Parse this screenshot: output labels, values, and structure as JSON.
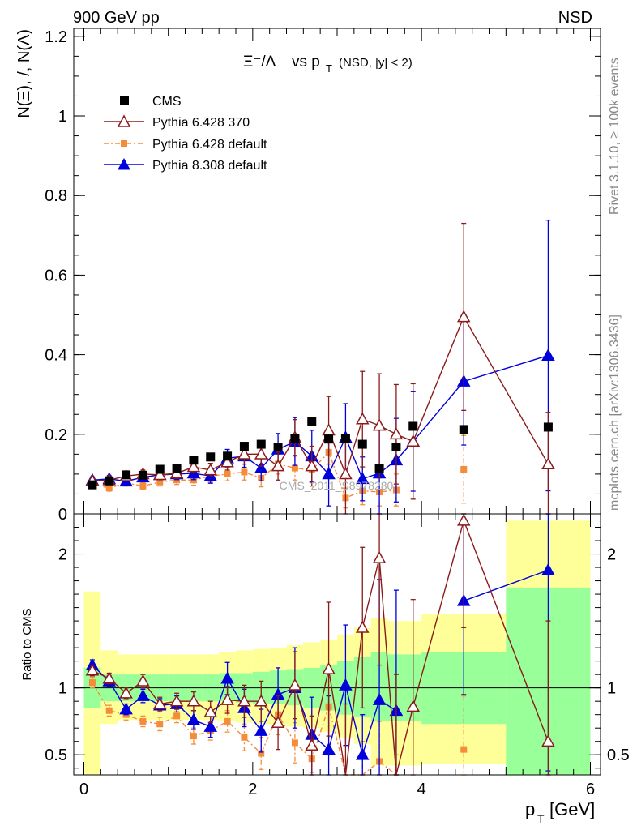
{
  "header": {
    "left": "900 GeV pp",
    "right": "NSD"
  },
  "side_labels": {
    "rivet": "Rivet 3.1.10, ≥ 100k events",
    "mcplots": "mcplots.cern.ch [arXiv:1306.3436]"
  },
  "watermark": "CMS_2011_S8978280",
  "main_plot": {
    "title_ratio": "Ξ⁻/Λ",
    "title_vs": "vs p",
    "title_sub": "T",
    "title_cut": "(NSD, |y| < 2)",
    "ylabel": "N(Ξ), /, N(Λ)",
    "ylim": [
      0,
      1.22
    ],
    "yticks": [
      "0",
      "0.2",
      "0.4",
      "0.6",
      "0.8",
      "1",
      "1.2"
    ]
  },
  "ratio_plot": {
    "ylabel": "Ratio to CMS",
    "ylim": [
      0.35,
      2.3
    ],
    "yticks": [
      "0.5",
      "1",
      "2"
    ]
  },
  "xaxis": {
    "label_main": "p",
    "label_sub": "T",
    "label_unit": "[GeV]",
    "xlim": [
      -0.12,
      6.12
    ],
    "xticks": [
      "0",
      "2",
      "4",
      "6"
    ]
  },
  "legend": {
    "entries": [
      "CMS",
      "Pythia 6.428 370",
      "Pythia 6.428 default",
      "Pythia 8.308 default"
    ]
  },
  "colors": {
    "cms": "#000000",
    "p6_370": "#8b1a1a",
    "p6_default": "#f58c3a",
    "p8": "#0000dd",
    "band_inner": "#99ff99",
    "band_outer": "#ffff99"
  },
  "chart_data": {
    "type": "scatter",
    "x": [
      0.1,
      0.3,
      0.5,
      0.7,
      0.9,
      1.1,
      1.3,
      1.5,
      1.7,
      1.9,
      2.1,
      2.3,
      2.5,
      2.7,
      2.9,
      3.1,
      3.3,
      3.5,
      3.7,
      3.9,
      4.5,
      5.5
    ],
    "bin_edges": [
      0,
      0.2,
      0.4,
      0.6,
      0.8,
      1.0,
      1.2,
      1.4,
      1.6,
      1.8,
      2.0,
      2.2,
      2.4,
      2.6,
      2.8,
      3.0,
      3.2,
      3.4,
      3.6,
      3.8,
      4.0,
      5.0,
      6.0
    ],
    "series": [
      {
        "name": "CMS",
        "y": [
          0.073,
          0.083,
          0.098,
          0.097,
          0.112,
          0.113,
          0.135,
          0.143,
          0.145,
          0.17,
          0.175,
          0.168,
          0.19,
          0.232,
          0.188,
          0.19,
          0.175,
          0.113,
          0.168,
          0.22,
          0.212,
          0.218
        ]
      },
      {
        "name": "Pythia 6.428 370",
        "y": [
          0.083,
          0.085,
          0.095,
          0.1,
          0.098,
          0.102,
          0.118,
          0.11,
          0.13,
          0.15,
          0.15,
          0.12,
          0.192,
          0.12,
          0.21,
          0.1,
          0.238,
          0.222,
          0.2,
          0.182,
          0.495,
          0.125
        ],
        "err": [
          0.008,
          0.008,
          0.009,
          0.01,
          0.011,
          0.013,
          0.015,
          0.017,
          0.02,
          0.025,
          0.03,
          0.035,
          0.045,
          0.05,
          0.085,
          0.1,
          0.12,
          0.13,
          0.125,
          0.145,
          0.235,
          0.13
        ]
      },
      {
        "name": "Pythia 6.428 default",
        "y": [
          0.075,
          0.065,
          0.078,
          0.07,
          0.08,
          0.085,
          0.085,
          0.095,
          0.1,
          0.105,
          0.09,
          0.125,
          0.115,
          0.11,
          0.155,
          0.04,
          0.058,
          0.055,
          0.06,
          null,
          0.112,
          null
        ],
        "err": [
          0.008,
          0.008,
          0.008,
          0.009,
          0.01,
          0.011,
          0.013,
          0.015,
          0.017,
          0.02,
          0.022,
          0.025,
          0.03,
          0.032,
          0.04,
          0.025,
          0.035,
          0.035,
          0.04,
          null,
          0.085,
          null
        ]
      },
      {
        "name": "Pythia 8.308 default",
        "y": [
          0.085,
          0.088,
          0.082,
          0.092,
          0.098,
          0.1,
          0.102,
          0.095,
          0.14,
          0.145,
          0.115,
          0.162,
          0.182,
          0.145,
          0.1,
          0.192,
          0.088,
          0.102,
          0.135,
          0.182,
          0.333,
          0.398
        ],
        "err": [
          0.008,
          0.008,
          0.009,
          0.01,
          0.012,
          0.014,
          0.016,
          0.018,
          0.022,
          0.028,
          0.032,
          0.04,
          0.06,
          0.065,
          0.08,
          0.085,
          0.055,
          0.11,
          0.105,
          0.125,
          0.16,
          0.34
        ]
      }
    ],
    "ratio": {
      "band_inner": [
        [
          0.85,
          1.15
        ],
        [
          0.9,
          1.1
        ],
        [
          0.9,
          1.1
        ],
        [
          0.9,
          1.1
        ],
        [
          0.9,
          1.1
        ],
        [
          0.9,
          1.1
        ],
        [
          0.9,
          1.1
        ],
        [
          0.9,
          1.1
        ],
        [
          0.9,
          1.11
        ],
        [
          0.89,
          1.11
        ],
        [
          0.88,
          1.12
        ],
        [
          0.88,
          1.13
        ],
        [
          0.87,
          1.14
        ],
        [
          0.85,
          1.15
        ],
        [
          0.83,
          1.17
        ],
        [
          0.8,
          1.2
        ],
        [
          0.78,
          1.23
        ],
        [
          0.75,
          1.27
        ],
        [
          0.75,
          1.25
        ],
        [
          0.75,
          1.25
        ],
        [
          0.73,
          1.27
        ],
        [
          0.35,
          1.75
        ]
      ],
      "band_outer": [
        [
          0.35,
          1.72
        ],
        [
          0.73,
          1.28
        ],
        [
          0.76,
          1.25
        ],
        [
          0.76,
          1.25
        ],
        [
          0.76,
          1.25
        ],
        [
          0.76,
          1.25
        ],
        [
          0.76,
          1.25
        ],
        [
          0.76,
          1.25
        ],
        [
          0.75,
          1.27
        ],
        [
          0.74,
          1.28
        ],
        [
          0.73,
          1.29
        ],
        [
          0.72,
          1.3
        ],
        [
          0.71,
          1.32
        ],
        [
          0.7,
          1.34
        ],
        [
          0.67,
          1.36
        ],
        [
          0.63,
          1.4
        ],
        [
          0.58,
          1.45
        ],
        [
          0.42,
          1.52
        ],
        [
          0.42,
          1.5
        ],
        [
          0.42,
          1.5
        ],
        [
          0.43,
          1.55
        ],
        [
          0.35,
          2.25
        ]
      ],
      "p6_370": [
        1.13,
        1.07,
        0.96,
        1.05,
        0.88,
        0.9,
        0.9,
        0.82,
        0.91,
        0.9,
        0.9,
        0.74,
        1.02,
        0.57,
        1.14,
        0.28,
        1.45,
        1.97,
        0.3,
        0.86,
        2.25,
        0.6
      ],
      "p6_370_err": [
        0.04,
        0.04,
        0.04,
        0.05,
        0.05,
        0.06,
        0.07,
        0.08,
        0.1,
        0.12,
        0.15,
        0.2,
        0.25,
        0.22,
        0.5,
        0.6,
        0.6,
        0.8,
        0.8,
        0.8,
        0.8,
        0.9
      ],
      "p6_default": [
        1.04,
        0.83,
        0.8,
        0.75,
        0.73,
        0.79,
        0.64,
        0.68,
        0.75,
        0.63,
        0.51,
        0.8,
        0.59,
        0.47,
        0.86,
        0.2,
        0.3,
        0.45,
        0.2,
        null,
        0.54,
        null
      ],
      "p6_default_err": [
        0.04,
        0.04,
        0.04,
        0.04,
        0.05,
        0.05,
        0.06,
        0.07,
        0.08,
        0.1,
        0.12,
        0.15,
        0.15,
        0.15,
        0.3,
        0.2,
        0.3,
        0.3,
        0.3,
        null,
        0.4,
        null
      ],
      "p8": [
        1.17,
        1.05,
        0.84,
        0.94,
        0.87,
        0.88,
        0.76,
        0.71,
        1.07,
        0.85,
        0.68,
        0.95,
        1.0,
        0.65,
        0.54,
        1.02,
        0.5,
        0.91,
        0.83,
        null,
        1.65,
        1.88
      ],
      "p8_err": [
        0.04,
        0.04,
        0.04,
        0.05,
        0.05,
        0.06,
        0.07,
        0.08,
        0.12,
        0.14,
        0.16,
        0.2,
        0.3,
        0.28,
        0.4,
        0.45,
        0.3,
        0.9,
        0.9,
        null,
        0.7,
        1.5
      ]
    }
  }
}
